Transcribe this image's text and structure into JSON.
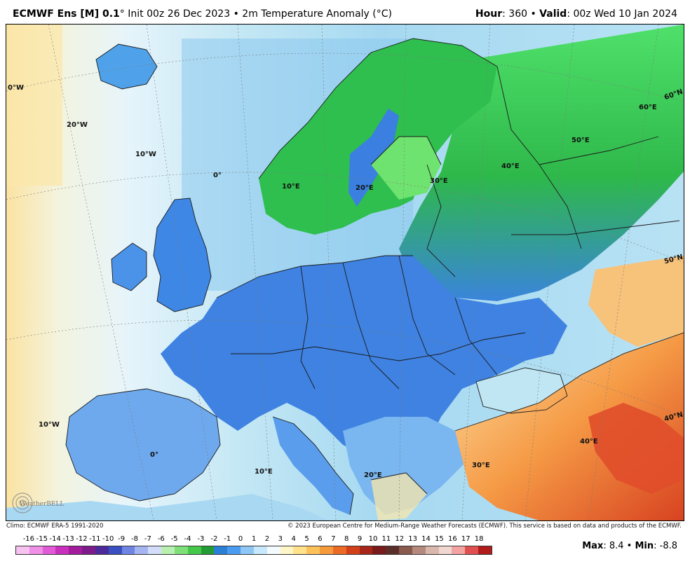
{
  "header": {
    "model": "ECMWF Ens [M] 0.1",
    "deg": "°",
    "init": " Init 00z 26 Dec 2023 • 2m Temperature Anomaly (",
    "unit": "°C",
    "close": ")",
    "hour_label": "Hour",
    "hour_value": ": 360 • ",
    "valid_label": "Valid",
    "valid_value": ": 00z Wed 10 Jan 2024"
  },
  "map": {
    "region": "Europe",
    "colors": {
      "ocean_near": "#bfe6f2",
      "ocean_far": "#e4f3fb",
      "ocean_warm": "#fbe7a9",
      "land_cold": "#3f7fe0",
      "land_cool": "#7fb7f0",
      "land_green": "#2fc34e",
      "land_light_green": "#8ff08f",
      "land_warm": "#f6b35b",
      "land_hot": "#e0522a",
      "border": "#1a1a1a"
    },
    "grid_labels": [
      "0°W",
      "20°W",
      "10°W",
      "0°",
      "10°E",
      "20°E",
      "30°E",
      "40°E",
      "50°E",
      "60°E",
      "60°N",
      "50°N",
      "40°N",
      "40°E",
      "30°E",
      "20°E",
      "10°E",
      "0°",
      "10°W"
    ]
  },
  "footer": {
    "climo": "Climo: ECMWF ERA-5 1991-2020",
    "copyright": "© 2023 European Centre for Medium-Range Weather Forecasts (ECMWF). This service is based on data and products of the ECMWF."
  },
  "colorbar": {
    "ticks": [
      "-16",
      "-15",
      "-14",
      "-13",
      "-12",
      "-11",
      "-10",
      "-9",
      "-8",
      "-7",
      "-6",
      "-5",
      "-4",
      "-3",
      "-2",
      "-1",
      "0",
      "1",
      "2",
      "3",
      "4",
      "5",
      "6",
      "7",
      "8",
      "9",
      "10",
      "11",
      "12",
      "13",
      "14",
      "15",
      "16",
      "17",
      "18"
    ],
    "colors": [
      "#f7c2f0",
      "#ef8fe6",
      "#e25bd6",
      "#c930bd",
      "#a21c9c",
      "#7d1b8a",
      "#4b2a9c",
      "#3a4fc0",
      "#6f84e3",
      "#a5b5f1",
      "#d3dcf8",
      "#b9f0b0",
      "#7fe07a",
      "#45c84a",
      "#239c34",
      "#2a7fd6",
      "#4a9cf0",
      "#8ec7f6",
      "#c7e9fb",
      "#f3fbff",
      "#fff6c7",
      "#ffe28a",
      "#fdc15a",
      "#f59a3a",
      "#ea6a26",
      "#d2401a",
      "#a8251a",
      "#7a1b1b",
      "#5a2f2a",
      "#8a5a4e",
      "#b48a7e",
      "#d9b7ac",
      "#f0d7cf",
      "#f4a3a3",
      "#e05050",
      "#b01c1c"
    ]
  },
  "stats": {
    "max_label": "Max",
    "max_value": ": 8.4 • ",
    "min_label": "Min",
    "min_value": ": -8.8"
  },
  "logo": {
    "text": "WeatherBELL"
  }
}
